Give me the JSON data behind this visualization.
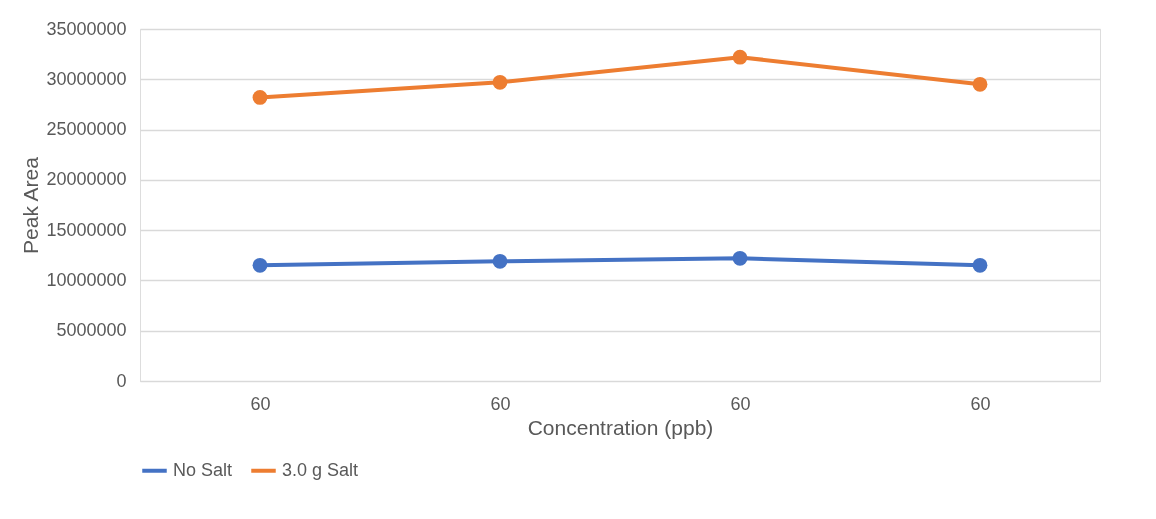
{
  "chart_data": {
    "type": "line",
    "xlabel": "Concentration (ppb)",
    "ylabel": "Peak Area",
    "categories": [
      "60",
      "60",
      "60",
      "60"
    ],
    "series": [
      {
        "name": "No Salt",
        "color": "#4472c4",
        "values": [
          11500000,
          11900000,
          12200000,
          11500000
        ]
      },
      {
        "name": "3.0 g Salt",
        "color": "#ed7d31",
        "values": [
          28200000,
          29700000,
          32200000,
          29500000
        ]
      }
    ],
    "ylim": [
      0,
      35000000
    ],
    "yticks": [
      0,
      5000000,
      10000000,
      15000000,
      20000000,
      25000000,
      30000000,
      35000000
    ],
    "grid": "y",
    "legend": "bottom",
    "marker": "circle",
    "line_style": "solid"
  }
}
